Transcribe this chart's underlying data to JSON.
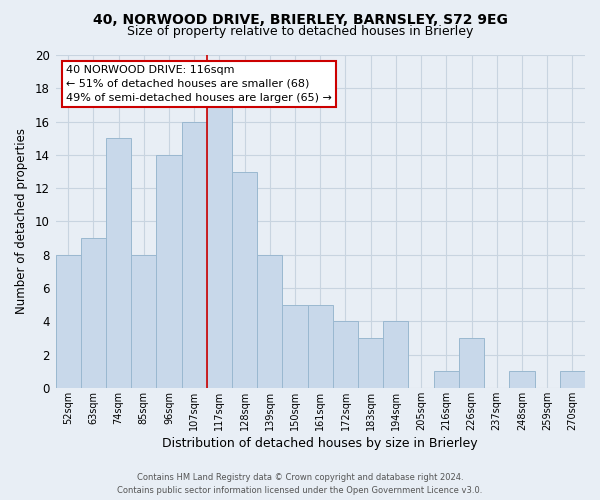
{
  "title": "40, NORWOOD DRIVE, BRIERLEY, BARNSLEY, S72 9EG",
  "subtitle": "Size of property relative to detached houses in Brierley",
  "xlabel": "Distribution of detached houses by size in Brierley",
  "ylabel": "Number of detached properties",
  "categories": [
    "52sqm",
    "63sqm",
    "74sqm",
    "85sqm",
    "96sqm",
    "107sqm",
    "117sqm",
    "128sqm",
    "139sqm",
    "150sqm",
    "161sqm",
    "172sqm",
    "183sqm",
    "194sqm",
    "205sqm",
    "216sqm",
    "226sqm",
    "237sqm",
    "248sqm",
    "259sqm",
    "270sqm"
  ],
  "values": [
    8,
    9,
    15,
    8,
    14,
    16,
    17,
    13,
    8,
    5,
    5,
    4,
    3,
    4,
    0,
    1,
    3,
    0,
    1,
    0,
    1
  ],
  "bar_color": "#c8d8ea",
  "bar_edge_color": "#9ab8d0",
  "highlight_index": 6,
  "highlight_line_color": "#cc0000",
  "ylim": [
    0,
    20
  ],
  "yticks": [
    0,
    2,
    4,
    6,
    8,
    10,
    12,
    14,
    16,
    18,
    20
  ],
  "annotation_title": "40 NORWOOD DRIVE: 116sqm",
  "annotation_line1": "← 51% of detached houses are smaller (68)",
  "annotation_line2": "49% of semi-detached houses are larger (65) →",
  "annotation_box_color": "#ffffff",
  "annotation_box_edge": "#cc0000",
  "background_color": "#e8eef5",
  "plot_bg_color": "#e8eef5",
  "footer_line1": "Contains HM Land Registry data © Crown copyright and database right 2024.",
  "footer_line2": "Contains public sector information licensed under the Open Government Licence v3.0.",
  "grid_color": "#c8d4e0",
  "title_fontsize": 10,
  "subtitle_fontsize": 9,
  "xlabel_fontsize": 9,
  "ylabel_fontsize": 8.5
}
